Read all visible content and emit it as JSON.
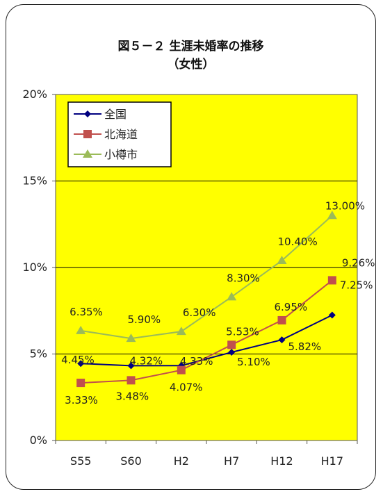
{
  "chart_data": {
    "type": "line",
    "title": "図５－２ 生涯未婚率の推移",
    "subtitle": "（女性）",
    "categories": [
      "S55",
      "S60",
      "H2",
      "H7",
      "H12",
      "H17"
    ],
    "ylim": [
      0,
      20
    ],
    "yticks": [
      "0%",
      "5%",
      "10%",
      "15%",
      "20%"
    ],
    "grid": true,
    "legend_position": "top-left",
    "plot_background": "#ffff00",
    "series": [
      {
        "name": "全国",
        "values": [
          4.45,
          4.32,
          4.33,
          5.1,
          5.82,
          7.25
        ],
        "labels": [
          "4.45%",
          "4.32%",
          "4.33%",
          "5.10%",
          "5.82%",
          "7.25%"
        ],
        "color": "#000080",
        "marker": "diamond"
      },
      {
        "name": "北海道",
        "values": [
          3.33,
          3.48,
          4.07,
          5.53,
          6.95,
          9.26
        ],
        "labels": [
          "3.33%",
          "3.48%",
          "4.07%",
          "5.53%",
          "6.95%",
          "9.26%"
        ],
        "color": "#c0504d",
        "marker": "square"
      },
      {
        "name": "小樽市",
        "values": [
          6.35,
          5.9,
          6.3,
          8.3,
          10.4,
          13.0
        ],
        "labels": [
          "6.35%",
          "5.90%",
          "6.30%",
          "8.30%",
          "10.40%",
          "13.00%"
        ],
        "color": "#9bbb59",
        "marker": "triangle"
      }
    ]
  }
}
